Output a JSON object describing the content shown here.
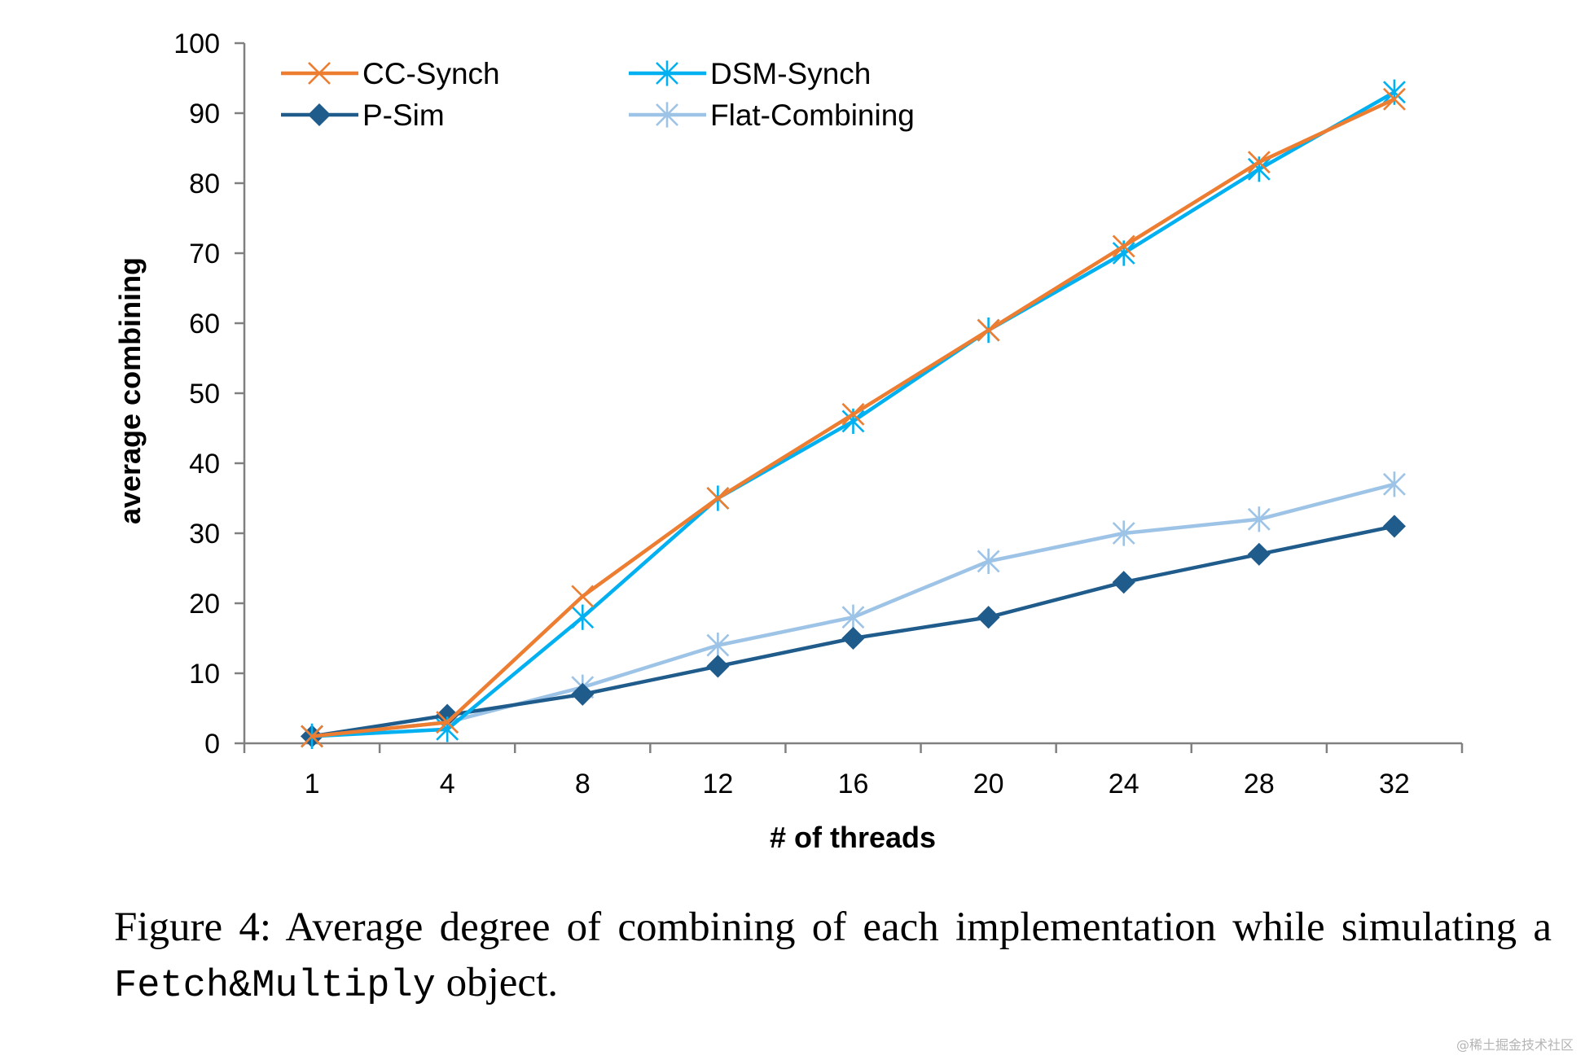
{
  "chart_data": {
    "type": "line",
    "title": "",
    "xlabel": "# of threads",
    "ylabel": "average combining",
    "categories": [
      "1",
      "4",
      "8",
      "12",
      "16",
      "20",
      "24",
      "28",
      "32"
    ],
    "ylim": [
      0,
      100
    ],
    "yticks": [
      0,
      10,
      20,
      30,
      40,
      50,
      60,
      70,
      80,
      90,
      100
    ],
    "grid": false,
    "legend_position": "top-left",
    "series": [
      {
        "name": "CC-Synch",
        "color": "#ED7D31",
        "marker": "x",
        "values": [
          1,
          3,
          21,
          35,
          47,
          59,
          71,
          83,
          92
        ]
      },
      {
        "name": "DSM-Synch",
        "color": "#00B0F0",
        "marker": "star",
        "values": [
          1,
          2,
          18,
          35,
          46,
          59,
          70,
          82,
          93
        ]
      },
      {
        "name": "P-Sim",
        "color": "#1F5C8B",
        "marker": "diamond",
        "values": [
          1,
          4,
          7,
          11,
          15,
          18,
          23,
          27,
          31
        ]
      },
      {
        "name": "Flat-Combining",
        "color": "#9DC3E6",
        "marker": "star",
        "values": [
          1,
          3,
          8,
          14,
          18,
          26,
          30,
          32,
          37
        ]
      }
    ]
  },
  "caption": {
    "prefix": "Figure 4: Average degree of combining of each implementation while simulating a ",
    "code": "Fetch&Multiply",
    "suffix": " object."
  },
  "watermark": "@稀土掘金技术社区"
}
